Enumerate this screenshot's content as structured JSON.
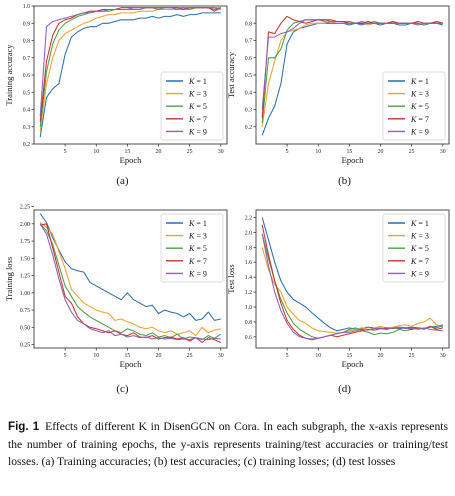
{
  "chart_data": [
    {
      "type": "line",
      "panel_label": "(a)",
      "xlabel": "Epoch",
      "ylabel": "Training accuracy",
      "xlim": [
        0,
        31
      ],
      "ylim": [
        0.2,
        1.0
      ],
      "xticks": [
        "5",
        "10",
        "15",
        "20",
        "25",
        "30"
      ],
      "yticks": [
        "0.2",
        "0.3",
        "0.4",
        "0.5",
        "0.6",
        "0.7",
        "0.8",
        "0.9",
        "1.0"
      ],
      "grid": false,
      "legend": "lower-right",
      "x": [
        1,
        2,
        3,
        4,
        5,
        6,
        7,
        8,
        9,
        10,
        11,
        12,
        13,
        14,
        15,
        16,
        17,
        18,
        19,
        20,
        21,
        22,
        23,
        24,
        25,
        26,
        27,
        28,
        29,
        30
      ],
      "series": [
        {
          "name": "K = 1",
          "values": [
            0.24,
            0.47,
            0.52,
            0.55,
            0.72,
            0.82,
            0.85,
            0.87,
            0.88,
            0.88,
            0.9,
            0.9,
            0.91,
            0.92,
            0.92,
            0.92,
            0.93,
            0.93,
            0.94,
            0.93,
            0.94,
            0.94,
            0.95,
            0.94,
            0.95,
            0.95,
            0.96,
            0.96,
            0.96,
            0.96
          ]
        },
        {
          "name": "K = 3",
          "values": [
            0.27,
            0.55,
            0.7,
            0.8,
            0.84,
            0.86,
            0.88,
            0.9,
            0.91,
            0.93,
            0.94,
            0.95,
            0.95,
            0.96,
            0.96,
            0.96,
            0.97,
            0.97,
            0.97,
            0.98,
            0.98,
            0.98,
            0.98,
            0.98,
            0.98,
            0.99,
            0.99,
            0.99,
            0.99,
            0.99
          ]
        },
        {
          "name": "K = 5",
          "values": [
            0.3,
            0.62,
            0.78,
            0.86,
            0.9,
            0.92,
            0.94,
            0.95,
            0.96,
            0.97,
            0.97,
            0.97,
            0.98,
            0.98,
            0.98,
            0.98,
            0.98,
            0.99,
            0.99,
            0.98,
            0.99,
            0.99,
            0.99,
            0.99,
            0.98,
            0.99,
            0.99,
            0.99,
            0.98,
            0.99
          ]
        },
        {
          "name": "K = 7",
          "values": [
            0.33,
            0.68,
            0.83,
            0.9,
            0.92,
            0.93,
            0.95,
            0.96,
            0.97,
            0.97,
            0.98,
            0.98,
            0.98,
            0.99,
            0.99,
            0.99,
            0.99,
            0.99,
            0.99,
            0.99,
            0.99,
            0.99,
            0.99,
            0.98,
            0.99,
            0.99,
            0.99,
            0.99,
            0.97,
            0.99
          ]
        },
        {
          "name": "K = 9",
          "values": [
            0.36,
            0.88,
            0.91,
            0.92,
            0.93,
            0.94,
            0.95,
            0.96,
            0.96,
            0.97,
            0.97,
            0.98,
            0.98,
            0.98,
            0.98,
            0.99,
            0.99,
            0.99,
            0.99,
            0.99,
            0.99,
            0.99,
            0.98,
            0.99,
            0.99,
            0.99,
            0.99,
            0.99,
            0.99,
            0.98
          ]
        }
      ]
    },
    {
      "type": "line",
      "panel_label": "(b)",
      "xlabel": "Epoch",
      "ylabel": "Test accuracy",
      "xlim": [
        0,
        31
      ],
      "ylim": [
        0.1,
        0.9
      ],
      "xticks": [
        "5",
        "10",
        "15",
        "20",
        "25",
        "30"
      ],
      "yticks": [
        "0.2",
        "0.3",
        "0.4",
        "0.5",
        "0.6",
        "0.7",
        "0.8"
      ],
      "grid": false,
      "legend": "lower-right",
      "x": [
        1,
        2,
        3,
        4,
        5,
        6,
        7,
        8,
        9,
        10,
        11,
        12,
        13,
        14,
        15,
        16,
        17,
        18,
        19,
        20,
        21,
        22,
        23,
        24,
        25,
        26,
        27,
        28,
        29,
        30
      ],
      "series": [
        {
          "name": "K = 1",
          "values": [
            0.15,
            0.25,
            0.32,
            0.45,
            0.68,
            0.75,
            0.77,
            0.78,
            0.79,
            0.8,
            0.8,
            0.8,
            0.8,
            0.8,
            0.79,
            0.8,
            0.79,
            0.8,
            0.8,
            0.79,
            0.8,
            0.8,
            0.79,
            0.79,
            0.8,
            0.8,
            0.79,
            0.8,
            0.8,
            0.79
          ]
        },
        {
          "name": "K = 3",
          "values": [
            0.2,
            0.45,
            0.58,
            0.7,
            0.75,
            0.76,
            0.77,
            0.79,
            0.8,
            0.8,
            0.8,
            0.81,
            0.8,
            0.8,
            0.81,
            0.8,
            0.8,
            0.79,
            0.8,
            0.8,
            0.8,
            0.81,
            0.8,
            0.8,
            0.8,
            0.79,
            0.8,
            0.8,
            0.81,
            0.8
          ]
        },
        {
          "name": "K = 5",
          "values": [
            0.22,
            0.6,
            0.6,
            0.65,
            0.76,
            0.8,
            0.81,
            0.82,
            0.82,
            0.82,
            0.82,
            0.81,
            0.81,
            0.81,
            0.81,
            0.8,
            0.8,
            0.8,
            0.81,
            0.8,
            0.8,
            0.8,
            0.8,
            0.8,
            0.8,
            0.8,
            0.79,
            0.8,
            0.8,
            0.8
          ]
        },
        {
          "name": "K = 7",
          "values": [
            0.25,
            0.75,
            0.74,
            0.8,
            0.84,
            0.82,
            0.81,
            0.8,
            0.81,
            0.82,
            0.82,
            0.82,
            0.81,
            0.81,
            0.8,
            0.8,
            0.8,
            0.81,
            0.8,
            0.8,
            0.8,
            0.81,
            0.8,
            0.8,
            0.8,
            0.81,
            0.8,
            0.8,
            0.81,
            0.8
          ]
        },
        {
          "name": "K = 9",
          "values": [
            0.3,
            0.72,
            0.72,
            0.74,
            0.75,
            0.77,
            0.8,
            0.82,
            0.82,
            0.82,
            0.81,
            0.8,
            0.8,
            0.8,
            0.8,
            0.8,
            0.81,
            0.8,
            0.8,
            0.8,
            0.8,
            0.8,
            0.8,
            0.8,
            0.8,
            0.79,
            0.8,
            0.8,
            0.8,
            0.8
          ]
        }
      ]
    },
    {
      "type": "line",
      "panel_label": "(c)",
      "xlabel": "Epoch",
      "ylabel": "Training loss",
      "xlim": [
        0,
        31
      ],
      "ylim": [
        0.2,
        2.2
      ],
      "xticks": [
        "5",
        "10",
        "15",
        "20",
        "25",
        "30"
      ],
      "yticks": [
        "0.25",
        "0.50",
        "0.75",
        "1.00",
        "1.25",
        "1.50",
        "1.75",
        "2.00",
        "2.25"
      ],
      "grid": false,
      "legend": "upper-right",
      "x": [
        1,
        2,
        3,
        4,
        5,
        6,
        7,
        8,
        9,
        10,
        11,
        12,
        13,
        14,
        15,
        16,
        17,
        18,
        19,
        20,
        21,
        22,
        23,
        24,
        25,
        26,
        27,
        28,
        29,
        30
      ],
      "series": [
        {
          "name": "K = 1",
          "values": [
            2.15,
            2.02,
            1.8,
            1.62,
            1.45,
            1.35,
            1.32,
            1.3,
            1.15,
            1.1,
            1.05,
            1.0,
            0.95,
            0.9,
            1.0,
            0.9,
            0.85,
            0.8,
            0.82,
            0.7,
            0.75,
            0.72,
            0.7,
            0.65,
            0.7,
            0.6,
            0.62,
            0.72,
            0.6,
            0.62
          ]
        },
        {
          "name": "K = 3",
          "values": [
            2.02,
            1.95,
            1.85,
            1.6,
            1.35,
            1.05,
            0.95,
            0.85,
            0.8,
            0.75,
            0.72,
            0.7,
            0.6,
            0.62,
            0.58,
            0.55,
            0.5,
            0.48,
            0.5,
            0.45,
            0.42,
            0.45,
            0.4,
            0.42,
            0.45,
            0.38,
            0.5,
            0.42,
            0.46,
            0.48
          ]
        },
        {
          "name": "K = 5",
          "values": [
            2.0,
            1.9,
            1.7,
            1.4,
            1.1,
            0.95,
            0.8,
            0.72,
            0.65,
            0.6,
            0.55,
            0.5,
            0.45,
            0.42,
            0.48,
            0.45,
            0.4,
            0.38,
            0.42,
            0.36,
            0.38,
            0.35,
            0.4,
            0.33,
            0.36,
            0.35,
            0.32,
            0.38,
            0.34,
            0.4
          ]
        },
        {
          "name": "K = 7",
          "values": [
            1.98,
            2.0,
            1.65,
            1.3,
            0.95,
            0.85,
            0.65,
            0.55,
            0.5,
            0.48,
            0.45,
            0.42,
            0.45,
            0.4,
            0.38,
            0.42,
            0.36,
            0.35,
            0.38,
            0.33,
            0.35,
            0.36,
            0.33,
            0.35,
            0.3,
            0.35,
            0.28,
            0.35,
            0.32,
            0.28
          ]
        },
        {
          "name": "K = 9",
          "values": [
            2.0,
            1.85,
            1.55,
            1.2,
            0.9,
            0.72,
            0.6,
            0.55,
            0.48,
            0.45,
            0.42,
            0.45,
            0.38,
            0.4,
            0.36,
            0.38,
            0.35,
            0.36,
            0.33,
            0.35,
            0.33,
            0.34,
            0.32,
            0.33,
            0.32,
            0.35,
            0.33,
            0.32,
            0.34,
            0.33
          ]
        }
      ]
    },
    {
      "type": "line",
      "panel_label": "(d)",
      "xlabel": "Epoch",
      "ylabel": "Test loss",
      "xlim": [
        0,
        31
      ],
      "ylim": [
        0.45,
        2.3
      ],
      "xticks": [
        "5",
        "10",
        "15",
        "20",
        "25",
        "30"
      ],
      "yticks": [
        "0.6",
        "0.8",
        "1.0",
        "1.2",
        "1.4",
        "1.6",
        "1.8",
        "2.0",
        "2.2"
      ],
      "grid": false,
      "legend": "upper-right",
      "x": [
        1,
        2,
        3,
        4,
        5,
        6,
        7,
        8,
        9,
        10,
        11,
        12,
        13,
        14,
        15,
        16,
        17,
        18,
        19,
        20,
        21,
        22,
        23,
        24,
        25,
        26,
        27,
        28,
        29,
        30
      ],
      "series": [
        {
          "name": "K = 1",
          "values": [
            2.2,
            1.9,
            1.6,
            1.35,
            1.2,
            1.1,
            1.05,
            1.0,
            0.92,
            0.85,
            0.78,
            0.72,
            0.68,
            0.7,
            0.72,
            0.7,
            0.71,
            0.73,
            0.72,
            0.71,
            0.7,
            0.72,
            0.71,
            0.72,
            0.73,
            0.72,
            0.71,
            0.73,
            0.74,
            0.76
          ]
        },
        {
          "name": "K = 3",
          "values": [
            1.8,
            1.5,
            1.3,
            1.2,
            1.0,
            0.9,
            0.82,
            0.78,
            0.72,
            0.68,
            0.67,
            0.66,
            0.65,
            0.66,
            0.68,
            0.7,
            0.72,
            0.7,
            0.72,
            0.74,
            0.72,
            0.73,
            0.75,
            0.76,
            0.74,
            0.78,
            0.8,
            0.85,
            0.76,
            0.73
          ]
        },
        {
          "name": "K = 5",
          "values": [
            1.98,
            1.65,
            1.35,
            1.1,
            0.92,
            0.78,
            0.7,
            0.65,
            0.6,
            0.58,
            0.6,
            0.62,
            0.64,
            0.66,
            0.7,
            0.72,
            0.68,
            0.66,
            0.63,
            0.65,
            0.64,
            0.66,
            0.7,
            0.68,
            0.7,
            0.72,
            0.7,
            0.74,
            0.72,
            0.75
          ]
        },
        {
          "name": "K = 7",
          "values": [
            2.1,
            1.7,
            1.35,
            1.05,
            0.82,
            0.7,
            0.62,
            0.58,
            0.56,
            0.58,
            0.6,
            0.62,
            0.6,
            0.62,
            0.64,
            0.66,
            0.68,
            0.7,
            0.69,
            0.71,
            0.72,
            0.71,
            0.73,
            0.72,
            0.7,
            0.72,
            0.71,
            0.74,
            0.7,
            0.72
          ]
        },
        {
          "name": "K = 9",
          "values": [
            1.98,
            1.55,
            1.2,
            0.95,
            0.78,
            0.66,
            0.6,
            0.58,
            0.57,
            0.58,
            0.6,
            0.62,
            0.64,
            0.66,
            0.66,
            0.68,
            0.7,
            0.69,
            0.71,
            0.72,
            0.7,
            0.72,
            0.73,
            0.71,
            0.72,
            0.7,
            0.72,
            0.7,
            0.69,
            0.68
          ]
        }
      ]
    }
  ],
  "series_colors": [
    "#2a6fb0",
    "#f0a030",
    "#46a046",
    "#c83228",
    "#8a5fbf"
  ],
  "caption": {
    "label": "Fig. 1",
    "text": "Effects of different K in DisenGCN on Cora. In each subgraph, the x-axis represents the number of training epochs, the y-axis represents training/test accuracies or training/test losses. (a) Training accuracies; (b) test accuracies; (c) training losses; (d) test losses"
  }
}
